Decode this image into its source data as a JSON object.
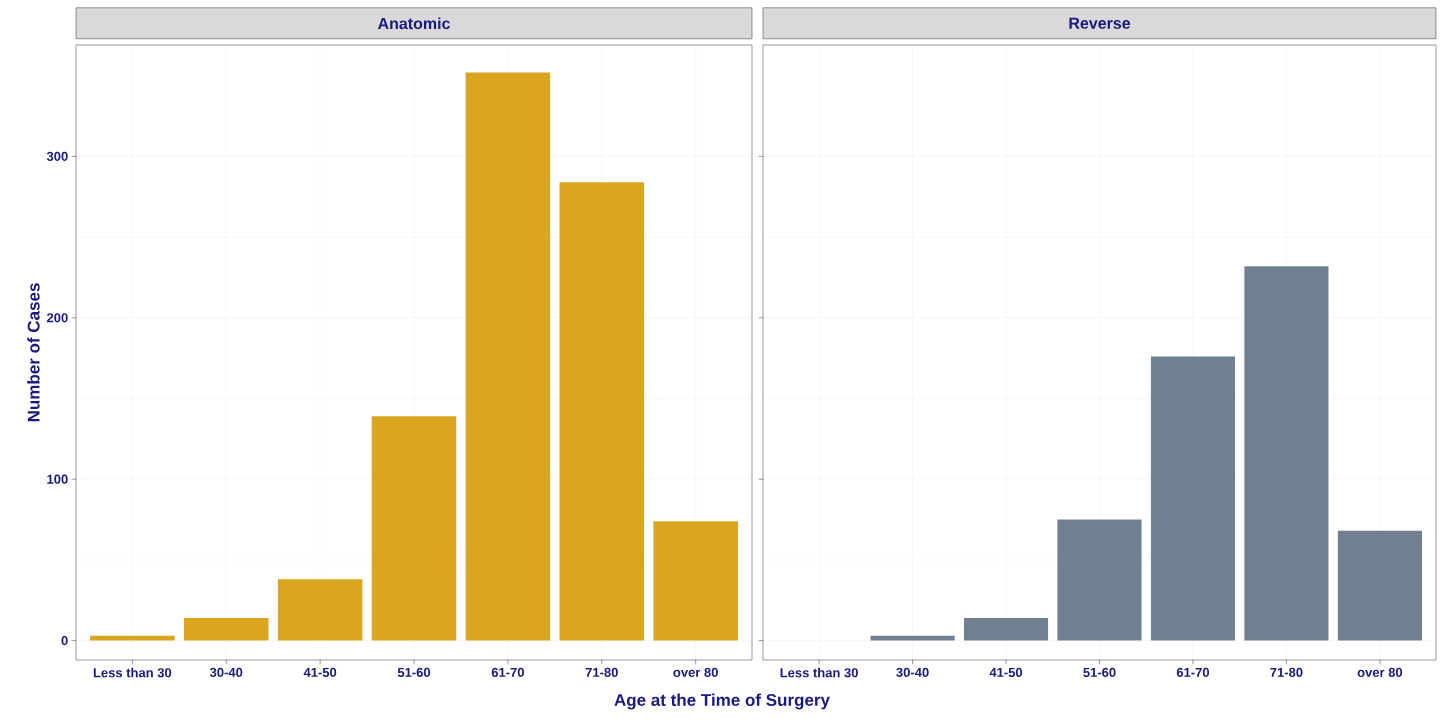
{
  "chart_data": [
    {
      "type": "bar",
      "title": "Anatomic",
      "xlabel": "Age at the Time of Surgery",
      "ylabel": "Number of Cases",
      "categories": [
        "Less than 30",
        "30-40",
        "41-50",
        "51-60",
        "61-70",
        "71-80",
        "over 80"
      ],
      "values": [
        3,
        14,
        38,
        139,
        352,
        284,
        74
      ],
      "color": "#daa520",
      "ylim": [
        -12,
        369
      ],
      "yticks": [
        0,
        100,
        200,
        300
      ],
      "grid": true
    },
    {
      "type": "bar",
      "title": "Reverse",
      "categories": [
        "Less than 30",
        "30-40",
        "41-50",
        "51-60",
        "61-70",
        "71-80",
        "over 80"
      ],
      "values": [
        0,
        3,
        14,
        75,
        176,
        232,
        68
      ],
      "color": "#708090",
      "ylim": [
        -12,
        369
      ],
      "yticks": [
        0,
        100,
        200,
        300
      ],
      "grid": true,
      "tick_labels": "x"
    }
  ]
}
